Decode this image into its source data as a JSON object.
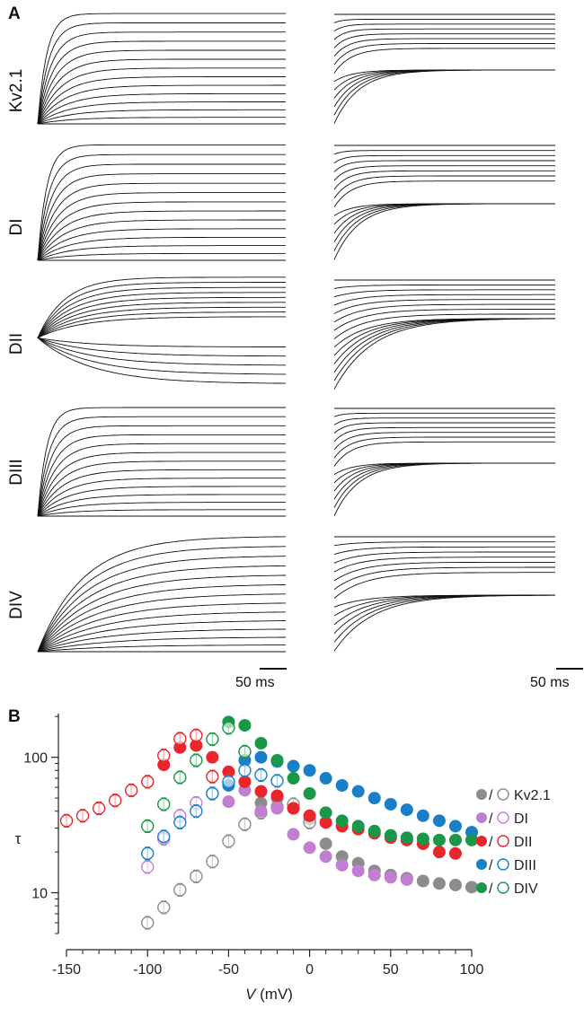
{
  "panel_a": {
    "letter": "A",
    "rows": [
      "Kv2.1",
      "DI",
      "DII",
      "DIII",
      "DIV"
    ],
    "scale_left": "50 ms",
    "scale_right": "50 ms"
  },
  "panel_b": {
    "letter": "B"
  },
  "chart_data": {
    "type": "scatter",
    "xlabel_italic": "V",
    "xlabel_unit": " (mV)",
    "ylabel": "τ",
    "xlim": [
      -155,
      100
    ],
    "ylim": [
      5,
      210
    ],
    "yscale": "log",
    "xticks": [
      -150,
      -100,
      -50,
      0,
      50,
      100
    ],
    "xtick_labels": [
      "-150",
      "-100",
      "-50",
      "0",
      "50",
      "100"
    ],
    "yticks": [
      10,
      100
    ],
    "ytick_labels": [
      "10",
      "100"
    ],
    "legend_sep": "/",
    "legend_placement": "right",
    "series": [
      {
        "name": "Kv2.1",
        "color": "#8c8c8c",
        "open_x": [
          -100,
          -90,
          -80,
          -70,
          -60,
          -50,
          -40,
          -30,
          -20,
          -10,
          0
        ],
        "open_y": [
          6,
          7.8,
          10.5,
          13.2,
          17,
          24,
          32,
          39,
          43,
          45,
          33
        ],
        "filled_x": [
          -30,
          -20,
          -10,
          0,
          10,
          20,
          30,
          40,
          50,
          60,
          70,
          80,
          90,
          100
        ],
        "filled_y": [
          46,
          50,
          42,
          35,
          23,
          18.5,
          16.5,
          14.5,
          13.5,
          12.8,
          12.2,
          11.7,
          11.4,
          11
        ]
      },
      {
        "name": "DI",
        "color": "#c07fd1",
        "open_x": [
          -100,
          -90,
          -80,
          -70,
          -60
        ],
        "open_y": [
          15.5,
          25,
          37,
          46,
          54
        ],
        "filled_x": [
          -50,
          -40,
          -30,
          -20,
          -10,
          0,
          10,
          20,
          30,
          40,
          50,
          60
        ],
        "filled_y": [
          47,
          57,
          40,
          42,
          27,
          21.5,
          18.5,
          16,
          14.5,
          13.5,
          13,
          12.5
        ]
      },
      {
        "name": "DII",
        "color": "#e8262b",
        "open_x": [
          -150,
          -140,
          -130,
          -120,
          -110,
          -100,
          -90,
          -80,
          -70,
          -60
        ],
        "open_y": [
          34,
          37,
          42,
          48,
          57,
          66,
          103,
          137,
          145,
          72
        ],
        "filled_x": [
          -90,
          -80,
          -70,
          -60,
          -50,
          -40,
          -30,
          -20,
          -10,
          0,
          10,
          20,
          30,
          40,
          50,
          60,
          70,
          80,
          90
        ],
        "filled_y": [
          88,
          118,
          122,
          100,
          78,
          66,
          56,
          52,
          42,
          37,
          33,
          31,
          29.5,
          27.5,
          25.5,
          24.5,
          23,
          20,
          19.5
        ]
      },
      {
        "name": "DIII",
        "color": "#1a7fc6",
        "open_x": [
          -100,
          -90,
          -80,
          -70,
          -60,
          -50,
          -40,
          -30,
          -20
        ],
        "open_y": [
          19.5,
          26,
          33,
          40,
          54,
          66,
          80,
          74,
          67
        ],
        "filled_x": [
          -50,
          -40,
          -30,
          -20,
          -10,
          0,
          10,
          20,
          30,
          40,
          50,
          60,
          70,
          80,
          90,
          100
        ],
        "filled_y": [
          62,
          95,
          100,
          93,
          86,
          80,
          70,
          62,
          56,
          50,
          45,
          41,
          37,
          34,
          31,
          28
        ]
      },
      {
        "name": "DIV",
        "color": "#1a9748",
        "open_x": [
          -100,
          -90,
          -80,
          -70,
          -60,
          -50,
          -40
        ],
        "open_y": [
          31,
          45,
          71,
          95,
          136,
          165,
          110
        ],
        "filled_x": [
          -50,
          -40,
          -30,
          -20,
          -10,
          0,
          10,
          20,
          30,
          40,
          50,
          60,
          70,
          80,
          90,
          100
        ],
        "filled_y": [
          182,
          172,
          127,
          95,
          70,
          54,
          39,
          34,
          31,
          28.5,
          26.5,
          25.5,
          25,
          24.5,
          24.5,
          24.5
        ]
      }
    ]
  }
}
